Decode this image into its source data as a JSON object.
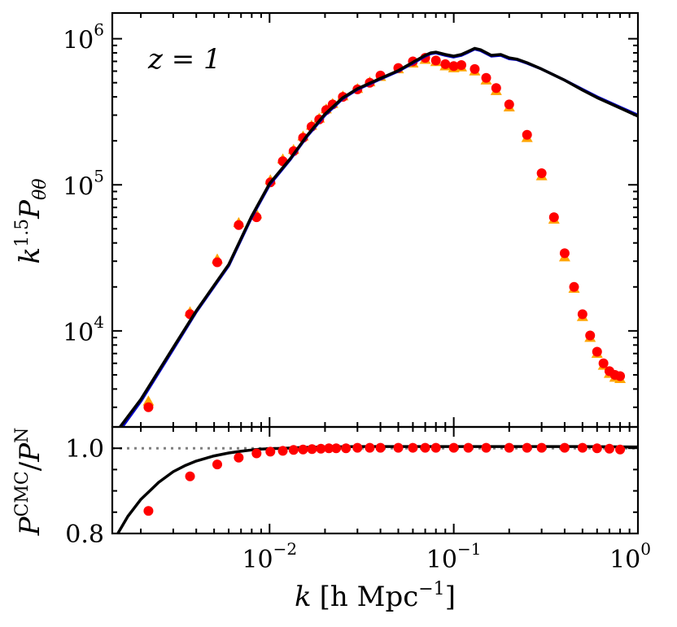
{
  "chart_data": [
    {
      "panel": "top",
      "type": "line+scatter",
      "xscale": "log",
      "yscale": "log",
      "xlim": [
        0.0014,
        1.0
      ],
      "ylim": [
        2200,
        1500000
      ],
      "ylabel_base": "k",
      "ylabel_exp": "1.5",
      "ylabel_var": "P",
      "ylabel_sub": "θθ",
      "annotation": "z = 1",
      "yticks": [
        {
          "value": 10000,
          "base": "10",
          "exp": "4"
        },
        {
          "value": 100000,
          "base": "10",
          "exp": "5"
        },
        {
          "value": 1000000,
          "base": "10",
          "exp": "6"
        }
      ],
      "series": [
        {
          "name": "orange-triangles",
          "kind": "markers-triangle",
          "color": "#FFA500",
          "x": [
            0.0022,
            0.0037,
            0.0052,
            0.0068,
            0.0085,
            0.0101,
            0.0118,
            0.0135,
            0.0152,
            0.0169,
            0.0186,
            0.0203,
            0.022,
            0.025,
            0.03,
            0.035,
            0.04,
            0.05,
            0.06,
            0.07,
            0.08,
            0.09,
            0.1,
            0.11,
            0.13,
            0.15,
            0.17,
            0.2,
            0.25,
            0.3,
            0.35,
            0.4,
            0.45,
            0.5,
            0.55,
            0.6,
            0.65,
            0.7,
            0.75,
            0.8
          ],
          "y": [
            3300,
            13500,
            31000,
            55000,
            63000,
            108000,
            150000,
            174000,
            215000,
            255000,
            285000,
            330000,
            360000,
            405000,
            455000,
            505000,
            550000,
            620000,
            680000,
            720000,
            695000,
            650000,
            630000,
            640000,
            600000,
            520000,
            440000,
            340000,
            210000,
            115000,
            58000,
            32000,
            19500,
            12500,
            9000,
            7000,
            5800,
            5100,
            4800,
            4700
          ]
        },
        {
          "name": "red-circles",
          "kind": "markers-circle",
          "color": "#FF0000",
          "x": [
            0.0022,
            0.0037,
            0.0052,
            0.0068,
            0.0085,
            0.0101,
            0.0118,
            0.0135,
            0.0152,
            0.0169,
            0.0186,
            0.0203,
            0.022,
            0.025,
            0.03,
            0.035,
            0.04,
            0.05,
            0.06,
            0.07,
            0.08,
            0.09,
            0.1,
            0.11,
            0.13,
            0.15,
            0.17,
            0.2,
            0.25,
            0.3,
            0.35,
            0.4,
            0.45,
            0.5,
            0.55,
            0.6,
            0.65,
            0.7,
            0.75,
            0.8
          ],
          "y": [
            3000,
            13000,
            29500,
            53000,
            60000,
            104000,
            145000,
            170000,
            210000,
            250000,
            280000,
            325000,
            355000,
            400000,
            450000,
            500000,
            560000,
            630000,
            700000,
            740000,
            710000,
            670000,
            650000,
            660000,
            620000,
            540000,
            460000,
            355000,
            220000,
            120000,
            60000,
            34000,
            20000,
            13000,
            9300,
            7200,
            6000,
            5300,
            5000,
            4900
          ]
        },
        {
          "name": "blue-line",
          "kind": "line",
          "color": "#0000CC",
          "x": [
            0.0015,
            0.002,
            0.003,
            0.004,
            0.006,
            0.008,
            0.01,
            0.013,
            0.016,
            0.02,
            0.025,
            0.03,
            0.04,
            0.05,
            0.06,
            0.07,
            0.075,
            0.08,
            0.09,
            0.1,
            0.11,
            0.12,
            0.13,
            0.14,
            0.16,
            0.18,
            0.2,
            0.22,
            0.25,
            0.3,
            0.4,
            0.5,
            0.6,
            0.8,
            1.0
          ],
          "y": [
            2000,
            3300,
            7500,
            13500,
            28000,
            60000,
            100000,
            150000,
            215000,
            300000,
            390000,
            450000,
            530000,
            600000,
            680000,
            760000,
            790000,
            800000,
            770000,
            750000,
            770000,
            810000,
            850000,
            830000,
            760000,
            770000,
            730000,
            720000,
            680000,
            620000,
            520000,
            450000,
            400000,
            340000,
            300000
          ]
        },
        {
          "name": "black-line",
          "kind": "line",
          "color": "#000000",
          "x": [
            0.0015,
            0.002,
            0.003,
            0.004,
            0.006,
            0.008,
            0.01,
            0.013,
            0.016,
            0.02,
            0.025,
            0.03,
            0.04,
            0.05,
            0.06,
            0.07,
            0.075,
            0.08,
            0.09,
            0.1,
            0.11,
            0.12,
            0.13,
            0.14,
            0.16,
            0.18,
            0.2,
            0.22,
            0.25,
            0.3,
            0.4,
            0.5,
            0.6,
            0.8,
            1.0
          ],
          "y": [
            2100,
            3400,
            7700,
            13700,
            28500,
            61000,
            102000,
            152000,
            218000,
            305000,
            395000,
            455000,
            535000,
            605000,
            690000,
            770000,
            800000,
            810000,
            780000,
            760000,
            780000,
            820000,
            860000,
            840000,
            770000,
            780000,
            740000,
            725000,
            685000,
            620000,
            520000,
            445000,
            395000,
            335000,
            295000
          ]
        }
      ]
    },
    {
      "panel": "bottom",
      "type": "line+scatter",
      "xscale": "log",
      "yscale": "linear",
      "xlim": [
        0.0014,
        1.0
      ],
      "ylim": [
        0.8,
        1.05
      ],
      "ylabel_num": "P",
      "ylabel_num_sup": "CMC",
      "ylabel_sep": "/",
      "ylabel_den": "P",
      "ylabel_den_sup": "N",
      "xlabel_k": "k",
      "xlabel_unit": "[h Mpc",
      "xlabel_exp": "−1",
      "xlabel_close": "]",
      "yticks": [
        {
          "value": 0.8,
          "label": "0.8"
        },
        {
          "value": 1.0,
          "label": "1.0"
        }
      ],
      "xticks": [
        {
          "value": 0.01,
          "base": "10",
          "exp": "−2"
        },
        {
          "value": 0.1,
          "base": "10",
          "exp": "−1"
        },
        {
          "value": 1.0,
          "base": "10",
          "exp": "0"
        }
      ],
      "reference_line": {
        "y": 1.0,
        "style": "dotted",
        "color": "#808080"
      },
      "series": [
        {
          "name": "ratio-line",
          "kind": "line",
          "color": "#000000",
          "x": [
            0.0015,
            0.0017,
            0.002,
            0.0025,
            0.003,
            0.0035,
            0.004,
            0.005,
            0.006,
            0.007,
            0.008,
            0.009,
            0.01,
            0.012,
            0.015,
            0.02,
            0.03,
            0.05,
            0.1,
            0.2,
            0.5,
            1.0
          ],
          "y": [
            0.8,
            0.84,
            0.88,
            0.92,
            0.945,
            0.96,
            0.97,
            0.982,
            0.989,
            0.993,
            0.996,
            0.998,
            0.999,
            1.0,
            1.002,
            1.003,
            1.004,
            1.004,
            1.004,
            1.004,
            1.004,
            1.003
          ]
        },
        {
          "name": "ratio-points",
          "kind": "markers-circle",
          "color": "#FF0000",
          "x": [
            0.0022,
            0.0037,
            0.0052,
            0.0068,
            0.0085,
            0.0101,
            0.0118,
            0.0135,
            0.0152,
            0.017,
            0.019,
            0.021,
            0.023,
            0.026,
            0.03,
            0.035,
            0.04,
            0.05,
            0.06,
            0.07,
            0.08,
            0.1,
            0.12,
            0.15,
            0.2,
            0.25,
            0.3,
            0.4,
            0.5,
            0.6,
            0.7,
            0.8
          ],
          "y": [
            0.853,
            0.934,
            0.962,
            0.978,
            0.988,
            0.992,
            0.994,
            0.996,
            0.997,
            0.998,
            0.999,
            1.0,
            1.0,
            1.0,
            1.001,
            1.001,
            1.001,
            1.001,
            1.001,
            1.001,
            1.001,
            1.001,
            1.001,
            1.001,
            1.001,
            1.001,
            1.001,
            1.001,
            1.001,
            1.0,
            0.999,
            0.997
          ]
        }
      ]
    }
  ]
}
